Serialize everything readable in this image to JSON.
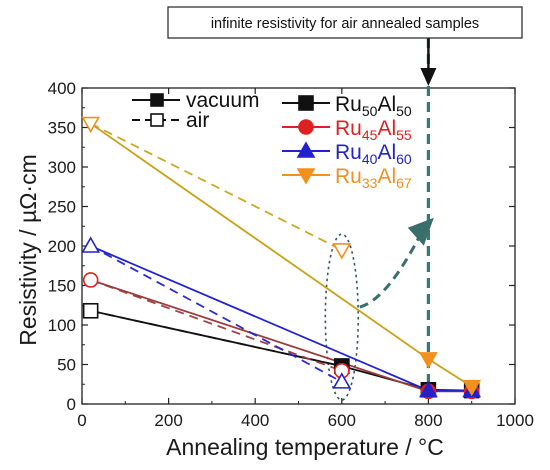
{
  "chart_data": {
    "type": "line",
    "xlabel": "Annealing temperature / °C",
    "ylabel": "Resistivity / µΩ·cm",
    "xlim": [
      0,
      1000
    ],
    "ylim": [
      0,
      400
    ],
    "xticks": [
      0,
      200,
      400,
      600,
      800,
      1000
    ],
    "yticks": [
      0,
      50,
      100,
      150,
      200,
      250,
      300,
      350,
      400
    ],
    "grid": false,
    "legend_placement": "top",
    "atmosphere_legend": [
      {
        "label": "vacuum",
        "style": "solid",
        "marker": "filled-square"
      },
      {
        "label": "air",
        "style": "dashed",
        "marker": "open-square"
      }
    ],
    "series": [
      {
        "name": "Ru50Al50",
        "name_parts": {
          "el1": "Ru",
          "sub1": "50",
          "el2": "Al",
          "sub2": "50"
        },
        "color": "#111111",
        "marker": "square",
        "vacuum": {
          "x": [
            20,
            600,
            800,
            900
          ],
          "y": [
            118,
            48,
            18,
            17
          ]
        },
        "air": {
          "x": [
            20,
            600
          ],
          "y": [
            118,
            48
          ]
        }
      },
      {
        "name": "Ru45Al55",
        "name_parts": {
          "el1": "Ru",
          "sub1": "45",
          "el2": "Al",
          "sub2": "55"
        },
        "color": "#e02020",
        "line_color": "#9b3b3b",
        "marker": "circle",
        "vacuum": {
          "x": [
            20,
            800,
            900
          ],
          "y": [
            157,
            16,
            16
          ]
        },
        "air": {
          "x": [
            20,
            600
          ],
          "y": [
            157,
            42
          ]
        }
      },
      {
        "name": "Ru40Al60",
        "name_parts": {
          "el1": "Ru",
          "sub1": "40",
          "el2": "Al",
          "sub2": "60"
        },
        "color": "#2222cc",
        "marker": "triangle-up",
        "vacuum": {
          "x": [
            20,
            800,
            900
          ],
          "y": [
            200,
            17,
            17
          ]
        },
        "air": {
          "x": [
            20,
            600
          ],
          "y": [
            200,
            28
          ]
        }
      },
      {
        "name": "Ru33Al67",
        "name_parts": {
          "el1": "Ru",
          "sub1": "33",
          "el2": "Al",
          "sub2": "67"
        },
        "color": "#f0901e",
        "line_color": "#c9a21a",
        "marker": "triangle-down",
        "vacuum": {
          "x": [
            20,
            800,
            900
          ],
          "y": [
            355,
            57,
            22
          ]
        },
        "air": {
          "x": [
            20,
            600
          ],
          "y": [
            355,
            195
          ]
        }
      }
    ],
    "annotations": {
      "callout_text": "infinite resistivity for air annealed samples",
      "vertical_dashed_line_x": 800,
      "vertical_line_color": "#2e7d78",
      "ellipse_center": {
        "x": 600,
        "y": 110
      },
      "ellipse_radius": {
        "x": 38,
        "y": 105
      },
      "arrow_color": "#3a6e6b"
    }
  }
}
